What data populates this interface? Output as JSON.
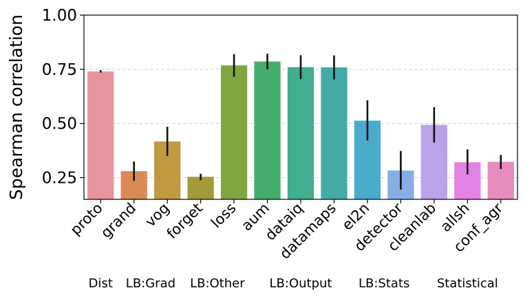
{
  "chart_data": {
    "type": "bar",
    "title": "",
    "xlabel": "",
    "ylabel": "Spearman correlation",
    "ylim": [
      0.15,
      1.0
    ],
    "yticks": [
      0.25,
      0.5,
      0.75,
      1.0
    ],
    "ytick_labels": [
      "0.25",
      "0.50",
      "0.75",
      "1.00"
    ],
    "grid": "horizontal-dashed",
    "categories": [
      "proto",
      "grand",
      "vog",
      "forget",
      "loss",
      "aum",
      "dataiq",
      "datamaps",
      "el2n",
      "detector",
      "cleanlab",
      "allsh",
      "conf_agr"
    ],
    "values": [
      0.74,
      0.28,
      0.417,
      0.254,
      0.768,
      0.786,
      0.76,
      0.759,
      0.513,
      0.283,
      0.494,
      0.321,
      0.323
    ],
    "error_low": [
      0.735,
      0.235,
      0.35,
      0.238,
      0.716,
      0.75,
      0.705,
      0.703,
      0.422,
      0.195,
      0.412,
      0.265,
      0.29
    ],
    "error_high": [
      0.746,
      0.325,
      0.485,
      0.268,
      0.82,
      0.822,
      0.815,
      0.814,
      0.607,
      0.373,
      0.575,
      0.38,
      0.355
    ],
    "colors": [
      "#e8949e",
      "#dc8a55",
      "#bf9a40",
      "#a39b3a",
      "#7fa63f",
      "#44ad6e",
      "#43ad90",
      "#44aaa8",
      "#4aaccc",
      "#87aee3",
      "#bca2e8",
      "#e381e4",
      "#e68cbf"
    ],
    "groups": [
      {
        "label": "Dist",
        "from": 0,
        "to": 0
      },
      {
        "label": "LB:Grad",
        "from": 1,
        "to": 2
      },
      {
        "label": "LB:Other",
        "from": 3,
        "to": 4
      },
      {
        "label": "LB:Output",
        "from": 5,
        "to": 7
      },
      {
        "label": "LB:Stats",
        "from": 8,
        "to": 9
      },
      {
        "label": "Statistical",
        "from": 10,
        "to": 12
      }
    ]
  }
}
